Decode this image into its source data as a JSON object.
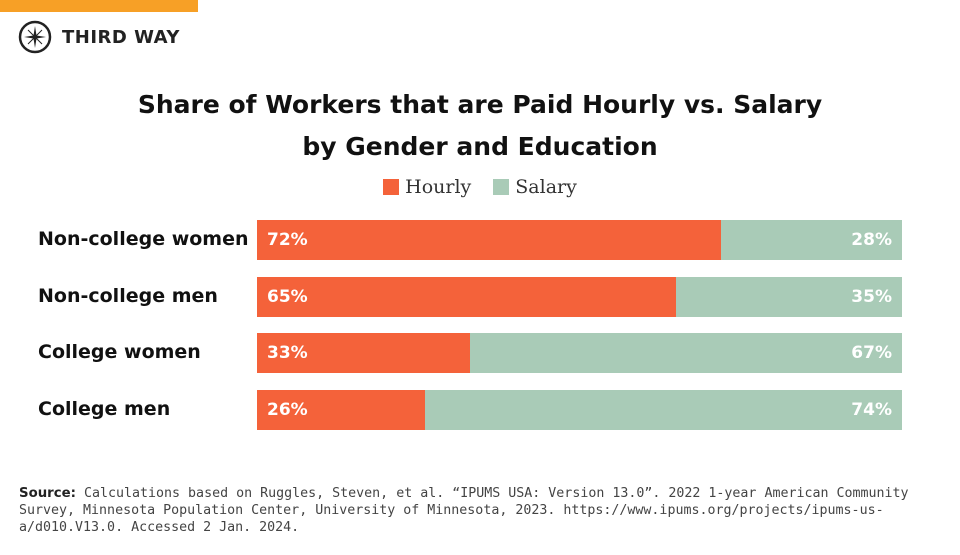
{
  "brand": {
    "name": "THIRD WAY",
    "accent": "#f7a026"
  },
  "chart_data": {
    "type": "bar",
    "orientation": "horizontal-stacked-100",
    "title_line1": "Share of Workers that are Paid Hourly vs. Salary",
    "title_line2": "by Gender and Education",
    "categories": [
      "Non-college women",
      "Non-college men",
      "College women",
      "College men"
    ],
    "series": [
      {
        "name": "Hourly",
        "color": "#f4623a",
        "values": [
          72,
          65,
          33,
          26
        ],
        "labels": [
          "72%",
          "65%",
          "33%",
          "26%"
        ]
      },
      {
        "name": "Salary",
        "color": "#a9cbb7",
        "values": [
          28,
          35,
          67,
          74
        ],
        "labels": [
          "28%",
          "35%",
          "67%",
          "74%"
        ]
      }
    ],
    "legend_position": "top-center",
    "xlim": [
      0,
      100
    ]
  },
  "source": {
    "label": "Source:",
    "text": "Calculations based on Ruggles, Steven, et al. “IPUMS USA: Version 13.0”. 2022 1-year American Community Survey, Minnesota Population Center, University of Minnesota, 2023. https://www.ipums.org/projects/ipums-us-a/d010.V13.0. Accessed 2 Jan. 2024."
  }
}
